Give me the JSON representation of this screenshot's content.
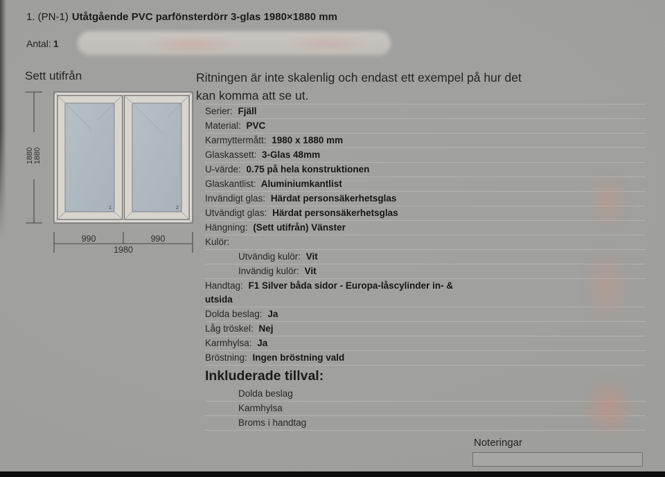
{
  "header": {
    "title_prefix": "1. (PN-1)",
    "title_bold": "Utåtgående PVC parfönsterdörr 3-glas 1980×1880 mm",
    "antal_label": "Antal:",
    "antal_value": "1",
    "disclaimer_line1": "Ritningen är inte skalenlig och endast ett exempel på hur det",
    "disclaimer_line2": "kan komma att se ut."
  },
  "drawing": {
    "view_label": "Sett utifrån",
    "height_dim_outer": "1880",
    "height_dim_inner": "1880",
    "width_dim_left": "990",
    "width_dim_right": "990",
    "width_dim_total": "1980",
    "pane_number_left": "1",
    "pane_number_right": "2"
  },
  "spec": {
    "rows": [
      {
        "label": "Serier:",
        "value": "Fjäll"
      },
      {
        "label": "Material:",
        "value": "PVC"
      },
      {
        "label": "Karmyttermått:",
        "value": "1980 x 1880 mm"
      },
      {
        "label": "Glaskassett:",
        "value": "3-Glas 48mm"
      },
      {
        "label": "U-värde:",
        "value": "0.75 på hela konstruktionen"
      },
      {
        "label": "Glaskantlist:",
        "value": "Aluminiumkantlist"
      },
      {
        "label": "Invändigt glas:",
        "value": "Härdat personsäkerhetsglas"
      },
      {
        "label": "Utvändigt glas:",
        "value": "Härdat personsäkerhetsglas"
      },
      {
        "label": "Hängning:",
        "value": "(Sett utifrån) Vänster"
      },
      {
        "label": "Kulör:",
        "value": ""
      },
      {
        "label": "Utvändig kulör:",
        "value": "Vit",
        "indent": true
      },
      {
        "label": "Invändig kulör:",
        "value": "Vit",
        "indent": true
      },
      {
        "label": "Handtag:",
        "value": "F1 Silver båda sidor - Europa-låscylinder in- &",
        "value2": "utsida"
      },
      {
        "label": "Dolda beslag:",
        "value": "Ja"
      },
      {
        "label": "Låg tröskel:",
        "value": "Nej"
      },
      {
        "label": "Karmhylsa:",
        "value": "Ja"
      },
      {
        "label": "Bröstning:",
        "value": "Ingen bröstning vald"
      }
    ],
    "included_heading": "Inkluderade tillval:",
    "included_items": [
      "Dolda beslag",
      "Karmhylsa",
      "Broms i handtag"
    ]
  },
  "notes": {
    "label": "Noteringar",
    "value": ""
  },
  "colors": {
    "background": "#9f9f9d",
    "glass": "#aeb8bf",
    "frame": "#dbd8d2",
    "redaction_pink": "#c89a8c",
    "text": "#222220"
  }
}
